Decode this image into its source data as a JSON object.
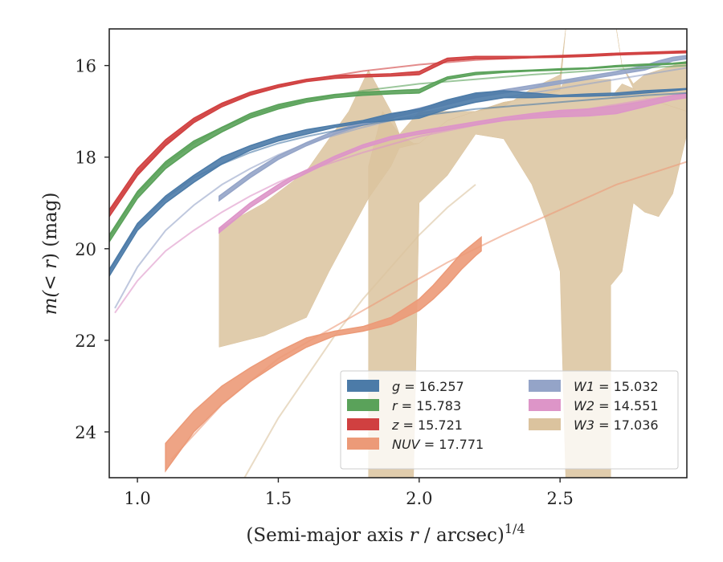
{
  "chart_data": {
    "type": "area",
    "xlabel_main": "(Semi-major axis ",
    "xlabel_var": "r",
    "xlabel_unit": " / arcsec)",
    "xlabel_exp": "1/4",
    "ylabel_main": "m(",
    "ylabel_var": "< r",
    "ylabel_unit": ") (mag)",
    "xlim": [
      0.9,
      2.95
    ],
    "ylim": [
      25.0,
      15.2
    ],
    "y_inverted": true,
    "x_ticks": [
      1.0,
      1.5,
      2.0,
      2.5
    ],
    "x_tick_labels": [
      "1.0",
      "1.5",
      "2.0",
      "2.5"
    ],
    "y_ticks": [
      16,
      18,
      20,
      22,
      24
    ],
    "y_tick_labels": [
      "16",
      "18",
      "20",
      "22",
      "24"
    ],
    "grid": false,
    "legend_placement": "lower-right",
    "legend_columns": 2,
    "series": [
      {
        "name": "g = 16.257",
        "symbol": "g",
        "value": "16.257",
        "color": "#4c7ba8",
        "band_x": [
          0.9,
          1.0,
          1.1,
          1.2,
          1.3,
          1.4,
          1.5,
          1.6,
          1.7,
          1.8,
          1.9,
          2.0,
          2.1,
          2.2,
          2.3,
          2.4,
          2.5,
          2.6,
          2.7,
          2.8,
          2.9,
          2.95
        ],
        "band_lo": [
          20.6,
          19.6,
          19.0,
          18.55,
          18.15,
          17.85,
          17.65,
          17.5,
          17.35,
          17.25,
          17.2,
          17.15,
          16.95,
          16.8,
          16.7,
          16.7,
          16.68,
          16.67,
          16.65,
          16.6,
          16.55,
          16.52
        ],
        "band_hi": [
          20.45,
          19.45,
          18.85,
          18.4,
          18.0,
          17.75,
          17.55,
          17.4,
          17.3,
          17.2,
          17.05,
          16.95,
          16.75,
          16.6,
          16.55,
          16.6,
          16.65,
          16.62,
          16.6,
          16.55,
          16.52,
          16.5
        ],
        "model_x": [
          0.9,
          1.0,
          1.1,
          1.2,
          1.3,
          1.4,
          1.5,
          1.6,
          1.8,
          2.0,
          2.2,
          2.4,
          2.6,
          2.8,
          2.95
        ],
        "model_y": [
          20.5,
          19.5,
          18.9,
          18.45,
          18.15,
          17.9,
          17.7,
          17.55,
          17.3,
          17.1,
          16.95,
          16.85,
          16.75,
          16.65,
          16.6
        ]
      },
      {
        "name": "r = 15.783",
        "symbol": "r",
        "value": "15.783",
        "color": "#5aa25a",
        "band_x": [
          0.9,
          1.0,
          1.1,
          1.2,
          1.3,
          1.4,
          1.5,
          1.6,
          1.7,
          1.8,
          1.9,
          2.0,
          2.05,
          2.1,
          2.2,
          2.3,
          2.4,
          2.5,
          2.6,
          2.7,
          2.8,
          2.9,
          2.95
        ],
        "band_lo": [
          19.85,
          18.9,
          18.25,
          17.8,
          17.45,
          17.15,
          16.95,
          16.8,
          16.7,
          16.65,
          16.62,
          16.6,
          16.45,
          16.3,
          16.2,
          16.15,
          16.12,
          16.1,
          16.07,
          16.03,
          16.0,
          15.97,
          15.95
        ],
        "band_hi": [
          19.7,
          18.75,
          18.1,
          17.65,
          17.35,
          17.05,
          16.85,
          16.72,
          16.63,
          16.58,
          16.55,
          16.52,
          16.38,
          16.25,
          16.15,
          16.12,
          16.1,
          16.07,
          16.05,
          16.0,
          15.97,
          15.95,
          15.92
        ],
        "model_x": [
          0.9,
          1.0,
          1.1,
          1.2,
          1.3,
          1.4,
          1.5,
          1.6,
          1.8,
          2.0,
          2.2,
          2.4,
          2.6,
          2.8,
          2.95
        ],
        "model_y": [
          19.75,
          18.8,
          18.15,
          17.7,
          17.35,
          17.1,
          16.9,
          16.75,
          16.55,
          16.4,
          16.3,
          16.2,
          16.12,
          16.05,
          16.0
        ]
      },
      {
        "name": "z = 15.721",
        "symbol": "z",
        "value": "15.721",
        "color": "#d04040",
        "band_x": [
          0.9,
          1.0,
          1.1,
          1.2,
          1.3,
          1.4,
          1.5,
          1.6,
          1.7,
          1.8,
          1.9,
          2.0,
          2.05,
          2.1,
          2.2,
          2.3,
          2.4,
          2.5,
          2.6,
          2.7,
          2.8,
          2.9,
          2.95
        ],
        "band_lo": [
          19.3,
          18.4,
          17.75,
          17.25,
          16.9,
          16.65,
          16.48,
          16.35,
          16.28,
          16.25,
          16.23,
          16.2,
          16.05,
          15.9,
          15.85,
          15.85,
          15.83,
          15.82,
          15.8,
          15.77,
          15.75,
          15.73,
          15.72
        ],
        "band_hi": [
          19.15,
          18.25,
          17.62,
          17.15,
          16.82,
          16.58,
          16.42,
          16.3,
          16.22,
          16.2,
          16.18,
          16.13,
          15.98,
          15.84,
          15.8,
          15.8,
          15.8,
          15.78,
          15.76,
          15.73,
          15.71,
          15.69,
          15.68
        ],
        "model_x": [
          0.9,
          1.0,
          1.1,
          1.2,
          1.3,
          1.4,
          1.5,
          1.6,
          1.8,
          2.0,
          2.2,
          2.4,
          2.6,
          2.8,
          2.95
        ],
        "model_y": [
          19.2,
          18.35,
          17.7,
          17.2,
          16.85,
          16.62,
          16.45,
          16.32,
          16.12,
          15.98,
          15.88,
          15.82,
          15.78,
          15.74,
          15.7
        ]
      },
      {
        "name": "NUV = 17.771",
        "symbol": "NUV",
        "value": "17.771",
        "color": "#ec9a78",
        "band_x": [
          1.1,
          1.2,
          1.3,
          1.4,
          1.5,
          1.6,
          1.7,
          1.8,
          1.9,
          2.0,
          2.05,
          2.1,
          2.15,
          2.2,
          2.22
        ],
        "band_lo": [
          24.85,
          24.0,
          23.4,
          22.9,
          22.5,
          22.15,
          21.9,
          21.8,
          21.65,
          21.35,
          21.1,
          20.8,
          20.45,
          20.15,
          20.05
        ],
        "band_hi": [
          24.25,
          23.55,
          23.0,
          22.6,
          22.25,
          21.95,
          21.8,
          21.7,
          21.5,
          21.1,
          20.8,
          20.45,
          20.1,
          19.85,
          19.75
        ],
        "model_x": [
          1.12,
          1.3,
          1.5,
          1.7,
          1.9,
          2.1,
          2.3,
          2.5,
          2.7,
          2.95
        ],
        "model_y": [
          24.6,
          23.4,
          22.4,
          21.7,
          21.0,
          20.3,
          19.7,
          19.15,
          18.6,
          18.1
        ]
      },
      {
        "name": "W1 = 15.032",
        "symbol": "W1",
        "value": "15.032",
        "color": "#94a4c8",
        "band_x": [
          1.29,
          1.4,
          1.5,
          1.6,
          1.7,
          1.8,
          1.9,
          2.0,
          2.1,
          2.2,
          2.3,
          2.4,
          2.5,
          2.6,
          2.7,
          2.8,
          2.85,
          2.9,
          2.95
        ],
        "band_lo": [
          18.95,
          18.45,
          18.05,
          17.75,
          17.5,
          17.3,
          17.15,
          17.0,
          16.85,
          16.7,
          16.6,
          16.5,
          16.4,
          16.3,
          16.2,
          16.1,
          16.0,
          15.9,
          15.85
        ],
        "band_hi": [
          18.85,
          18.35,
          17.97,
          17.68,
          17.43,
          17.23,
          17.08,
          16.93,
          16.78,
          16.63,
          16.53,
          16.43,
          16.33,
          16.23,
          16.13,
          16.0,
          15.9,
          15.82,
          15.78
        ],
        "model_x": [
          0.92,
          1.0,
          1.1,
          1.2,
          1.3,
          1.4,
          1.5,
          1.6,
          1.8,
          2.0,
          2.2,
          2.4,
          2.6,
          2.8,
          2.95
        ],
        "model_y": [
          21.3,
          20.4,
          19.6,
          19.05,
          18.6,
          18.25,
          17.95,
          17.7,
          17.35,
          17.05,
          16.8,
          16.6,
          16.4,
          16.2,
          16.05
        ]
      },
      {
        "name": "W2 = 14.551",
        "symbol": "W2",
        "value": "14.551",
        "color": "#dd95c8",
        "band_x": [
          1.29,
          1.4,
          1.5,
          1.55,
          1.6,
          1.7,
          1.8,
          1.9,
          2.0,
          2.1,
          2.2,
          2.3,
          2.4,
          2.5,
          2.6,
          2.7,
          2.8,
          2.9,
          2.95
        ],
        "band_lo": [
          19.65,
          19.1,
          18.7,
          18.5,
          18.35,
          18.05,
          17.8,
          17.62,
          17.5,
          17.4,
          17.3,
          17.2,
          17.15,
          17.12,
          17.1,
          17.05,
          16.9,
          16.75,
          16.7
        ],
        "band_hi": [
          19.55,
          19.0,
          18.6,
          18.42,
          18.28,
          17.98,
          17.73,
          17.55,
          17.43,
          17.33,
          17.23,
          17.13,
          17.05,
          16.98,
          16.95,
          16.88,
          16.78,
          16.65,
          16.6
        ],
        "model_x": [
          0.92,
          1.0,
          1.1,
          1.2,
          1.3,
          1.4,
          1.5,
          1.6,
          1.8,
          2.0,
          2.2,
          2.4,
          2.6,
          2.8,
          2.95
        ],
        "model_y": [
          21.4,
          20.7,
          20.05,
          19.6,
          19.2,
          18.85,
          18.55,
          18.3,
          17.9,
          17.55,
          17.3,
          17.1,
          16.95,
          16.75,
          16.62
        ]
      },
      {
        "name": "W3 = 17.036",
        "symbol": "W3",
        "value": "17.036",
        "color": "#dbc39e",
        "band_x": [
          1.29,
          1.45,
          1.6,
          1.68,
          1.75,
          1.82,
          1.9,
          1.93,
          2.0,
          2.1,
          2.2,
          2.3,
          2.4,
          2.5,
          2.52,
          2.55,
          2.6,
          2.65,
          2.7,
          2.72,
          2.76,
          2.8,
          2.85,
          2.9,
          2.95
        ],
        "band_lo": [
          22.15,
          21.9,
          21.5,
          20.5,
          19.7,
          18.9,
          18.2,
          17.8,
          17.7,
          17.2,
          17.0,
          16.8,
          16.7,
          16.55,
          15.2,
          15.2,
          15.2,
          15.2,
          15.2,
          16.0,
          16.5,
          16.7,
          16.8,
          16.9,
          17.0
        ],
        "band_hi": [
          19.55,
          19.0,
          18.3,
          17.6,
          17.0,
          16.1,
          17.0,
          17.5,
          17.0,
          17.0,
          17.0,
          16.9,
          16.5,
          16.2,
          15.2,
          15.2,
          15.2,
          15.2,
          15.2,
          16.0,
          16.4,
          16.2,
          16.1,
          16.0,
          15.9
        ],
        "band2_x": [
          1.82,
          1.87,
          1.93,
          1.98,
          2.0,
          2.1,
          2.2,
          2.3,
          2.4,
          2.45,
          2.5,
          2.52,
          2.52,
          2.68,
          2.68,
          2.72,
          2.76,
          2.8,
          2.85,
          2.9,
          2.95
        ],
        "band2_lo": [
          25.0,
          25.0,
          25.0,
          25.0,
          19.0,
          18.4,
          17.5,
          17.6,
          18.6,
          19.4,
          20.5,
          25.0,
          25.0,
          25.0,
          20.8,
          20.5,
          19.0,
          19.2,
          19.3,
          18.8,
          17.5
        ],
        "band2_hi": [
          18.2,
          17.0,
          17.5,
          17.7,
          17.7,
          17.2,
          17.0,
          16.8,
          16.7,
          16.6,
          16.5,
          16.3,
          16.3,
          16.3,
          16.7,
          16.4,
          16.5,
          16.7,
          16.8,
          16.9,
          17.0
        ],
        "model_x": [
          1.38,
          1.5,
          1.6,
          1.7,
          1.8,
          1.9,
          2.0,
          2.1,
          2.2
        ],
        "model_y": [
          25.0,
          23.7,
          22.8,
          21.9,
          21.1,
          20.4,
          19.7,
          19.1,
          18.6
        ]
      }
    ]
  }
}
